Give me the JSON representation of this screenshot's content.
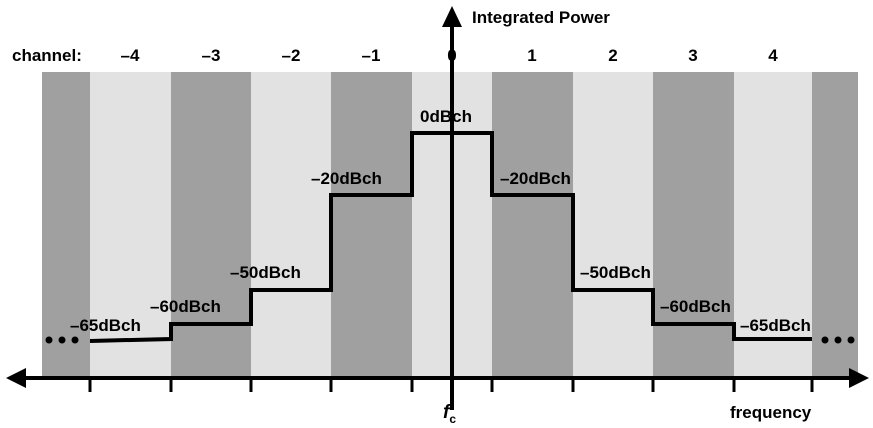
{
  "diagram": {
    "title": "Integrated Power",
    "channel_prefix": "channel:",
    "channels": [
      "–4",
      "–3",
      "–2",
      "–1",
      "0",
      "1",
      "2",
      "3",
      "4"
    ],
    "levels": [
      "–65dBch",
      "–60dBch",
      "–50dBch",
      "–20dBch",
      "0dBch",
      "–20dBch",
      "–50dBch",
      "–60dBch",
      "–65dBch"
    ],
    "level_values_dbch": [
      -65,
      -60,
      -50,
      -20,
      0,
      -20,
      -50,
      -60,
      -65
    ],
    "center_label": "f",
    "center_subscript": "c",
    "x_axis_label": "frequency",
    "ellipsis": "•••",
    "colors": {
      "dark_band": "#a0a0a0",
      "light_band": "#e2e2e2",
      "line": "#000000"
    }
  }
}
